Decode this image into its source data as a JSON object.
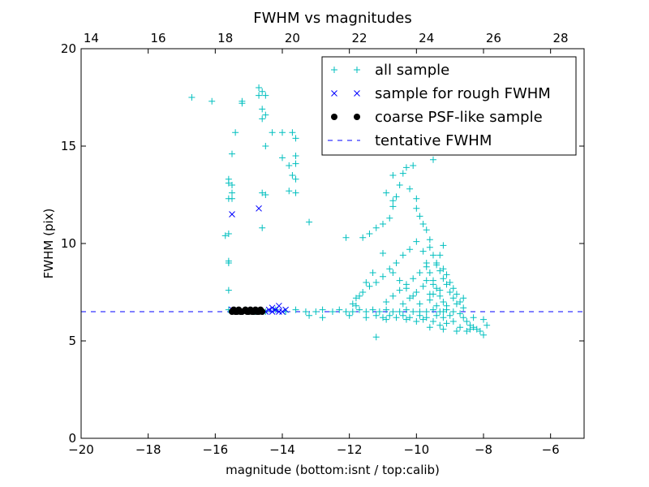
{
  "chart_data": {
    "type": "scatter",
    "title": "FWHM vs magnitudes",
    "xlabel": "magnitude (bottom:isnt / top:calib)",
    "ylabel": "FWHM (pix)",
    "xlim": [
      -20,
      -5
    ],
    "ylim": [
      0,
      20
    ],
    "x_ticks": [
      -20,
      -18,
      -16,
      -14,
      -12,
      -10,
      -8,
      -6
    ],
    "x_tick_labels": [
      "−20",
      "−18",
      "−16",
      "−14",
      "−12",
      "−10",
      "−8",
      "−6"
    ],
    "y_ticks": [
      0,
      5,
      10,
      15,
      20
    ],
    "y_tick_labels": [
      "0",
      "5",
      "10",
      "15",
      "20"
    ],
    "top_axis": {
      "offset": 33.7,
      "ticks": [
        14,
        16,
        18,
        20,
        22,
        24,
        26,
        28
      ],
      "tick_labels": [
        "14",
        "16",
        "18",
        "20",
        "22",
        "24",
        "26",
        "28"
      ]
    },
    "legend_position": "top-right",
    "series": [
      {
        "name": "all sample",
        "marker": "plus",
        "color": "#00bfbf",
        "points": [
          [
            -16.7,
            17.5
          ],
          [
            -16.1,
            17.3
          ],
          [
            -15.2,
            17.2
          ],
          [
            -15.2,
            17.3
          ],
          [
            -14.7,
            18.0
          ],
          [
            -14.6,
            17.8
          ],
          [
            -14.7,
            17.6
          ],
          [
            -14.5,
            17.6
          ],
          [
            -14.6,
            16.9
          ],
          [
            -14.5,
            16.6
          ],
          [
            -14.6,
            16.4
          ],
          [
            -14.3,
            15.7
          ],
          [
            -14.0,
            15.7
          ],
          [
            -13.7,
            15.7
          ],
          [
            -13.6,
            15.4
          ],
          [
            -14.5,
            15.0
          ],
          [
            -13.6,
            14.5
          ],
          [
            -13.6,
            14.1
          ],
          [
            -13.8,
            14.0
          ],
          [
            -13.7,
            13.5
          ],
          [
            -13.6,
            13.3
          ],
          [
            -14.0,
            14.4
          ],
          [
            -15.6,
            13.3
          ],
          [
            -15.6,
            13.1
          ],
          [
            -15.5,
            13.0
          ],
          [
            -15.5,
            12.6
          ],
          [
            -15.6,
            12.3
          ],
          [
            -15.5,
            12.3
          ],
          [
            -14.6,
            12.6
          ],
          [
            -14.5,
            12.5
          ],
          [
            -13.8,
            12.7
          ],
          [
            -13.6,
            12.6
          ],
          [
            -13.2,
            11.1
          ],
          [
            -14.6,
            10.8
          ],
          [
            -15.7,
            10.4
          ],
          [
            -15.6,
            10.5
          ],
          [
            -15.6,
            9.1
          ],
          [
            -15.6,
            9.0
          ],
          [
            -15.6,
            7.6
          ],
          [
            -15.4,
            15.7
          ],
          [
            -15.5,
            14.6
          ],
          [
            -15.6,
            6.6
          ],
          [
            -15.4,
            6.5
          ],
          [
            -15.1,
            6.6
          ],
          [
            -14.8,
            6.5
          ],
          [
            -14.5,
            6.5
          ],
          [
            -14.2,
            6.6
          ],
          [
            -13.9,
            6.5
          ],
          [
            -13.6,
            6.6
          ],
          [
            -13.3,
            6.5
          ],
          [
            -13.0,
            6.5
          ],
          [
            -12.8,
            6.6
          ],
          [
            -12.5,
            6.5
          ],
          [
            -12.3,
            6.6
          ],
          [
            -12.1,
            6.5
          ],
          [
            -11.9,
            6.5
          ],
          [
            -11.7,
            6.6
          ],
          [
            -11.5,
            6.5
          ],
          [
            -11.3,
            6.6
          ],
          [
            -11.1,
            6.5
          ],
          [
            -10.9,
            6.6
          ],
          [
            -10.7,
            6.5
          ],
          [
            -10.5,
            6.5
          ],
          [
            -10.3,
            6.6
          ],
          [
            -10.1,
            6.5
          ],
          [
            -9.9,
            6.5
          ],
          [
            -9.7,
            6.5
          ],
          [
            -9.5,
            6.6
          ],
          [
            -9.3,
            6.5
          ],
          [
            -9.1,
            6.6
          ],
          [
            -8.9,
            6.5
          ],
          [
            -13.2,
            6.3
          ],
          [
            -12.8,
            6.2
          ],
          [
            -12.0,
            6.3
          ],
          [
            -11.5,
            6.2
          ],
          [
            -11.2,
            5.2
          ],
          [
            -12.1,
            10.3
          ],
          [
            -11.6,
            10.3
          ],
          [
            -11.4,
            10.5
          ],
          [
            -11.2,
            10.8
          ],
          [
            -11.0,
            9.5
          ],
          [
            -11.0,
            11.0
          ],
          [
            -10.8,
            11.3
          ],
          [
            -10.7,
            11.9
          ],
          [
            -10.7,
            12.2
          ],
          [
            -10.9,
            12.6
          ],
          [
            -10.6,
            12.4
          ],
          [
            -10.5,
            13.0
          ],
          [
            -10.7,
            13.5
          ],
          [
            -10.4,
            13.6
          ],
          [
            -10.3,
            13.9
          ],
          [
            -10.1,
            14.0
          ],
          [
            -10.2,
            12.8
          ],
          [
            -10.0,
            12.3
          ],
          [
            -10.0,
            11.8
          ],
          [
            -9.9,
            11.4
          ],
          [
            -9.8,
            11.0
          ],
          [
            -9.7,
            10.7
          ],
          [
            -9.6,
            10.2
          ],
          [
            -9.6,
            9.8
          ],
          [
            -9.5,
            9.4
          ],
          [
            -9.4,
            9.0
          ],
          [
            -9.3,
            8.6
          ],
          [
            -9.2,
            8.2
          ],
          [
            -9.1,
            7.9
          ],
          [
            -9.0,
            7.5
          ],
          [
            -8.9,
            7.2
          ],
          [
            -8.8,
            6.9
          ],
          [
            -8.7,
            6.4
          ],
          [
            -8.6,
            6.2
          ],
          [
            -8.5,
            6.0
          ],
          [
            -8.4,
            5.8
          ],
          [
            -8.3,
            5.7
          ],
          [
            -8.2,
            5.6
          ],
          [
            -8.1,
            5.5
          ],
          [
            -8.0,
            5.3
          ],
          [
            -7.9,
            5.8
          ],
          [
            -8.0,
            6.1
          ],
          [
            -8.3,
            6.2
          ],
          [
            -8.6,
            7.2
          ],
          [
            -11.9,
            6.9
          ],
          [
            -11.8,
            7.2
          ],
          [
            -11.6,
            7.5
          ],
          [
            -11.4,
            7.8
          ],
          [
            -11.2,
            8.0
          ],
          [
            -11.0,
            8.3
          ],
          [
            -10.8,
            8.7
          ],
          [
            -10.6,
            9.0
          ],
          [
            -10.4,
            9.4
          ],
          [
            -10.2,
            9.7
          ],
          [
            -10.0,
            10.1
          ],
          [
            -9.8,
            9.6
          ],
          [
            -9.7,
            9.0
          ],
          [
            -9.6,
            8.5
          ],
          [
            -9.5,
            8.1
          ],
          [
            -9.4,
            7.7
          ],
          [
            -9.3,
            7.3
          ],
          [
            -9.2,
            7.0
          ],
          [
            -9.1,
            6.8
          ],
          [
            -10.9,
            7.0
          ],
          [
            -10.7,
            7.3
          ],
          [
            -10.5,
            7.6
          ],
          [
            -10.3,
            7.9
          ],
          [
            -10.1,
            8.2
          ],
          [
            -9.9,
            8.5
          ],
          [
            -9.7,
            8.8
          ],
          [
            -9.5,
            7.4
          ],
          [
            -9.4,
            6.8
          ],
          [
            -10.4,
            6.9
          ],
          [
            -10.2,
            7.2
          ],
          [
            -10.0,
            7.5
          ],
          [
            -9.8,
            7.8
          ],
          [
            -9.6,
            7.1
          ],
          [
            -9.9,
            6.9
          ],
          [
            -9.7,
            6.2
          ],
          [
            -9.5,
            6.0
          ],
          [
            -9.3,
            5.8
          ],
          [
            -9.1,
            5.9
          ],
          [
            -8.9,
            6.0
          ],
          [
            -8.7,
            5.7
          ],
          [
            -8.5,
            5.5
          ],
          [
            -9.0,
            6.3
          ],
          [
            -9.2,
            6.2
          ],
          [
            -9.4,
            6.3
          ],
          [
            -9.8,
            6.1
          ],
          [
            -10.0,
            6.0
          ],
          [
            -10.2,
            6.2
          ],
          [
            -10.4,
            6.3
          ],
          [
            -10.6,
            6.2
          ],
          [
            -10.8,
            6.3
          ],
          [
            -11.0,
            6.2
          ],
          [
            -11.2,
            6.3
          ],
          [
            -10.9,
            6.1
          ],
          [
            -10.3,
            6.1
          ],
          [
            -9.9,
            6.3
          ],
          [
            -9.6,
            5.7
          ],
          [
            -9.2,
            5.6
          ],
          [
            -8.8,
            5.5
          ],
          [
            -8.4,
            5.6
          ],
          [
            -9.5,
            14.3
          ],
          [
            -9.2,
            9.9
          ],
          [
            -9.3,
            9.4
          ],
          [
            -9.4,
            8.9
          ],
          [
            -9.2,
            8.7
          ],
          [
            -9.1,
            8.4
          ],
          [
            -9.0,
            8.0
          ],
          [
            -8.9,
            7.7
          ],
          [
            -8.8,
            7.4
          ],
          [
            -8.7,
            7.0
          ],
          [
            -8.6,
            6.7
          ],
          [
            -9.7,
            8.1
          ],
          [
            -9.5,
            7.9
          ],
          [
            -9.3,
            7.6
          ],
          [
            -9.6,
            7.4
          ],
          [
            -9.2,
            6.5
          ],
          [
            -10.5,
            8.1
          ],
          [
            -10.3,
            7.7
          ],
          [
            -10.1,
            7.3
          ],
          [
            -10.7,
            8.5
          ],
          [
            -11.3,
            8.5
          ],
          [
            -11.5,
            8.0
          ],
          [
            -11.7,
            7.3
          ],
          [
            -11.8,
            6.8
          ]
        ]
      },
      {
        "name": "sample for rough FWHM",
        "marker": "x",
        "color": "#0000ff",
        "points": [
          [
            -15.5,
            11.5
          ],
          [
            -14.7,
            11.8
          ],
          [
            -14.1,
            6.8
          ],
          [
            -15.5,
            6.6
          ],
          [
            -15.3,
            6.5
          ],
          [
            -15.1,
            6.5
          ],
          [
            -14.9,
            6.6
          ],
          [
            -14.7,
            6.5
          ],
          [
            -14.5,
            6.5
          ],
          [
            -14.4,
            6.6
          ],
          [
            -14.3,
            6.5
          ],
          [
            -14.2,
            6.6
          ],
          [
            -14.1,
            6.5
          ],
          [
            -14.0,
            6.5
          ],
          [
            -13.9,
            6.6
          ],
          [
            -14.3,
            6.7
          ]
        ]
      },
      {
        "name": "coarse PSF-like sample",
        "marker": "circle",
        "color": "#000000",
        "points": [
          [
            -15.5,
            6.5
          ],
          [
            -15.45,
            6.6
          ],
          [
            -15.4,
            6.5
          ],
          [
            -15.35,
            6.5
          ],
          [
            -15.3,
            6.6
          ],
          [
            -15.25,
            6.5
          ],
          [
            -15.2,
            6.5
          ],
          [
            -15.1,
            6.6
          ],
          [
            -15.05,
            6.5
          ],
          [
            -15.0,
            6.5
          ],
          [
            -14.95,
            6.6
          ],
          [
            -14.9,
            6.5
          ],
          [
            -14.85,
            6.5
          ],
          [
            -14.8,
            6.6
          ],
          [
            -14.75,
            6.5
          ],
          [
            -14.7,
            6.5
          ],
          [
            -14.65,
            6.6
          ],
          [
            -14.6,
            6.5
          ]
        ]
      },
      {
        "name": "tentative FWHM",
        "marker": "dashed-line",
        "color": "#0000ff",
        "value": 6.5
      }
    ]
  }
}
